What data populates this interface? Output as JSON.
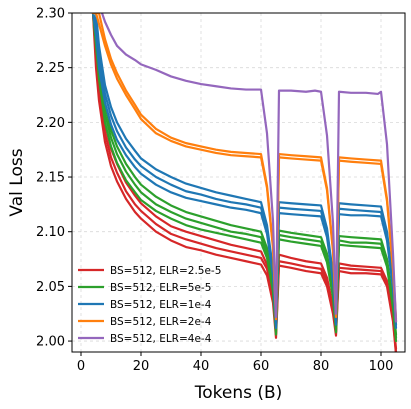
{
  "chart_data": {
    "type": "line",
    "xlabel": "Tokens (B)",
    "ylabel": "Val Loss",
    "xlim": [
      -3,
      108
    ],
    "ylim": [
      1.99,
      2.3
    ],
    "x_ticks": [
      0,
      20,
      40,
      60,
      80,
      100
    ],
    "y_ticks": [
      2.0,
      2.05,
      2.1,
      2.15,
      2.2,
      2.25,
      2.3
    ],
    "grid": true,
    "legend_position": "lower-left",
    "series": [
      {
        "name": "BS=512, ELR=2.5e-5",
        "color": "#d62728",
        "runs": [
          {
            "x": [
              4,
              5,
              6,
              8,
              10,
              12,
              15,
              18,
              20,
              25,
              30,
              35,
              40,
              45,
              50,
              55,
              60,
              62,
              64,
              65,
              66,
              70,
              75,
              80,
              82,
              84,
              85,
              86,
              90,
              95,
              100,
              102,
              104,
              105
            ],
            "y": [
              2.3,
              2.25,
              2.22,
              2.182,
              2.16,
              2.146,
              2.13,
              2.118,
              2.112,
              2.1,
              2.092,
              2.086,
              2.083,
              2.079,
              2.076,
              2.073,
              2.07,
              2.06,
              2.035,
              2.003,
              2.069,
              2.067,
              2.064,
              2.062,
              2.05,
              2.025,
              2.005,
              2.064,
              2.062,
              2.062,
              2.061,
              2.05,
              2.018,
              1.988
            ]
          },
          {
            "x": [
              4,
              5,
              6,
              8,
              10,
              12,
              15,
              18,
              20,
              25,
              30,
              35,
              40,
              45,
              50,
              55,
              60,
              62,
              64,
              65,
              66,
              70,
              75,
              80,
              82,
              84,
              85,
              86,
              90,
              95,
              100,
              102,
              104,
              105
            ],
            "y": [
              2.3,
              2.26,
              2.23,
              2.19,
              2.168,
              2.154,
              2.137,
              2.125,
              2.119,
              2.107,
              2.098,
              2.093,
              2.089,
              2.085,
              2.082,
              2.079,
              2.076,
              2.066,
              2.04,
              2.006,
              2.073,
              2.071,
              2.068,
              2.066,
              2.054,
              2.028,
              2.008,
              2.067,
              2.066,
              2.065,
              2.064,
              2.052,
              2.02,
              1.99
            ]
          },
          {
            "x": [
              4,
              5,
              6,
              8,
              10,
              12,
              15,
              18,
              20,
              25,
              30,
              35,
              40,
              45,
              50,
              55,
              60,
              62,
              64,
              65,
              66,
              70,
              75,
              80,
              82,
              84,
              85,
              86,
              90,
              95,
              100,
              102,
              104,
              105
            ],
            "y": [
              2.3,
              2.27,
              2.24,
              2.198,
              2.176,
              2.162,
              2.145,
              2.133,
              2.126,
              2.114,
              2.105,
              2.1,
              2.096,
              2.092,
              2.088,
              2.085,
              2.082,
              2.07,
              2.044,
              2.009,
              2.079,
              2.076,
              2.073,
              2.071,
              2.058,
              2.031,
              2.01,
              2.071,
              2.069,
              2.068,
              2.067,
              2.055,
              2.022,
              1.993
            ]
          }
        ]
      },
      {
        "name": "BS=512, ELR=5e-5",
        "color": "#2ca02c",
        "runs": [
          {
            "x": [
              4,
              5,
              6,
              8,
              10,
              12,
              15,
              18,
              20,
              25,
              30,
              35,
              40,
              45,
              50,
              55,
              60,
              62,
              64,
              65,
              66,
              70,
              75,
              80,
              82,
              84,
              85,
              86,
              90,
              95,
              100,
              102,
              104,
              105
            ],
            "y": [
              2.3,
              2.27,
              2.24,
              2.2,
              2.178,
              2.163,
              2.147,
              2.136,
              2.129,
              2.119,
              2.112,
              2.106,
              2.102,
              2.099,
              2.096,
              2.093,
              2.09,
              2.076,
              2.045,
              2.006,
              2.093,
              2.091,
              2.089,
              2.087,
              2.072,
              2.04,
              2.008,
              2.088,
              2.087,
              2.086,
              2.085,
              2.068,
              2.03,
              2.0
            ]
          },
          {
            "x": [
              4,
              5,
              6,
              8,
              10,
              12,
              15,
              18,
              20,
              25,
              30,
              35,
              40,
              45,
              50,
              55,
              60,
              62,
              64,
              65,
              66,
              70,
              75,
              80,
              82,
              84,
              85,
              86,
              90,
              95,
              100,
              102,
              104,
              105
            ],
            "y": [
              2.3,
              2.28,
              2.25,
              2.208,
              2.186,
              2.171,
              2.155,
              2.143,
              2.136,
              2.125,
              2.118,
              2.112,
              2.108,
              2.104,
              2.1,
              2.098,
              2.095,
              2.08,
              2.048,
              2.009,
              2.097,
              2.095,
              2.093,
              2.091,
              2.076,
              2.043,
              2.011,
              2.092,
              2.09,
              2.09,
              2.089,
              2.071,
              2.033,
              2.003
            ]
          },
          {
            "x": [
              4,
              5,
              6,
              8,
              10,
              12,
              15,
              18,
              20,
              25,
              30,
              35,
              40,
              45,
              50,
              55,
              60,
              62,
              64,
              65,
              66,
              70,
              75,
              80,
              82,
              84,
              85,
              86,
              90,
              95,
              100,
              102,
              104,
              105
            ],
            "y": [
              2.3,
              2.29,
              2.26,
              2.216,
              2.193,
              2.178,
              2.162,
              2.15,
              2.143,
              2.132,
              2.124,
              2.118,
              2.114,
              2.11,
              2.106,
              2.103,
              2.1,
              2.085,
              2.052,
              2.012,
              2.101,
              2.099,
              2.097,
              2.095,
              2.08,
              2.046,
              2.014,
              2.096,
              2.095,
              2.094,
              2.093,
              2.075,
              2.036,
              2.006
            ]
          }
        ]
      },
      {
        "name": "BS=512, ELR=1e-4",
        "color": "#1f77b4",
        "runs": [
          {
            "x": [
              4,
              5,
              6,
              8,
              10,
              12,
              15,
              18,
              20,
              25,
              30,
              35,
              40,
              45,
              50,
              55,
              60,
              62,
              64,
              65,
              66,
              70,
              75,
              80,
              82,
              84,
              85,
              86,
              90,
              95,
              100,
              102,
              104,
              105
            ],
            "y": [
              2.3,
              2.28,
              2.25,
              2.218,
              2.198,
              2.184,
              2.17,
              2.159,
              2.153,
              2.143,
              2.136,
              2.131,
              2.128,
              2.125,
              2.122,
              2.12,
              2.117,
              2.098,
              2.06,
              2.012,
              2.117,
              2.116,
              2.115,
              2.114,
              2.095,
              2.055,
              2.015,
              2.116,
              2.115,
              2.115,
              2.114,
              2.092,
              2.048,
              2.012
            ]
          },
          {
            "x": [
              4,
              5,
              6,
              8,
              10,
              12,
              15,
              18,
              20,
              25,
              30,
              35,
              40,
              45,
              50,
              55,
              60,
              62,
              64,
              65,
              66,
              70,
              75,
              80,
              82,
              84,
              85,
              86,
              90,
              95,
              100,
              102,
              104,
              105
            ],
            "y": [
              2.3,
              2.29,
              2.26,
              2.226,
              2.206,
              2.192,
              2.177,
              2.166,
              2.16,
              2.15,
              2.143,
              2.137,
              2.134,
              2.13,
              2.127,
              2.125,
              2.122,
              2.102,
              2.063,
              2.015,
              2.122,
              2.121,
              2.12,
              2.119,
              2.099,
              2.058,
              2.018,
              2.121,
              2.12,
              2.119,
              2.118,
              2.096,
              2.051,
              2.015
            ]
          },
          {
            "x": [
              4,
              5,
              6,
              8,
              10,
              12,
              15,
              18,
              20,
              25,
              30,
              35,
              40,
              45,
              50,
              55,
              60,
              62,
              64,
              65,
              66,
              70,
              75,
              80,
              82,
              84,
              85,
              86,
              90,
              95,
              100,
              102,
              104,
              105
            ],
            "y": [
              2.3,
              2.3,
              2.27,
              2.234,
              2.214,
              2.2,
              2.185,
              2.174,
              2.167,
              2.157,
              2.15,
              2.144,
              2.14,
              2.136,
              2.133,
              2.13,
              2.127,
              2.106,
              2.066,
              2.018,
              2.127,
              2.126,
              2.125,
              2.124,
              2.103,
              2.061,
              2.02,
              2.126,
              2.125,
              2.124,
              2.123,
              2.1,
              2.054,
              2.018
            ]
          }
        ]
      },
      {
        "name": "BS=512, ELR=2e-4",
        "color": "#ff7f0e",
        "runs": [
          {
            "x": [
              4,
              5,
              6,
              8,
              10,
              12,
              15,
              18,
              20,
              25,
              30,
              35,
              40,
              45,
              50,
              55,
              60,
              62,
              64,
              65,
              66,
              70,
              75,
              80,
              82,
              84,
              85,
              86,
              90,
              95,
              100,
              102,
              104,
              105
            ],
            "y": [
              2.3,
              2.3,
              2.29,
              2.27,
              2.253,
              2.24,
              2.225,
              2.212,
              2.203,
              2.19,
              2.183,
              2.178,
              2.175,
              2.172,
              2.17,
              2.169,
              2.168,
              2.14,
              2.085,
              2.02,
              2.168,
              2.167,
              2.166,
              2.165,
              2.138,
              2.082,
              2.022,
              2.165,
              2.164,
              2.163,
              2.162,
              2.128,
              2.065,
              2.018
            ]
          },
          {
            "x": [
              4,
              5,
              6,
              8,
              10,
              12,
              15,
              18,
              20,
              25,
              30,
              35,
              40,
              45,
              50,
              55,
              60,
              62,
              64,
              65,
              66,
              70,
              75,
              80,
              82,
              84,
              85,
              86,
              90,
              95,
              100,
              102,
              104,
              105
            ],
            "y": [
              2.3,
              2.3,
              2.3,
              2.276,
              2.258,
              2.245,
              2.229,
              2.216,
              2.207,
              2.194,
              2.186,
              2.181,
              2.178,
              2.175,
              2.173,
              2.172,
              2.171,
              2.142,
              2.087,
              2.022,
              2.171,
              2.17,
              2.169,
              2.168,
              2.14,
              2.084,
              2.024,
              2.168,
              2.167,
              2.166,
              2.165,
              2.13,
              2.067,
              2.02
            ]
          }
        ]
      },
      {
        "name": "BS=512, ELR=4e-4",
        "color": "#9467bd",
        "runs": [
          {
            "x": [
              7,
              8,
              10,
              12,
              15,
              18,
              20,
              25,
              30,
              35,
              40,
              45,
              50,
              55,
              57,
              60,
              62,
              64,
              65,
              66,
              70,
              75,
              78,
              80,
              82,
              84,
              85,
              86,
              90,
              95,
              99,
              100,
              102,
              104,
              105
            ],
            "y": [
              2.3,
              2.292,
              2.28,
              2.27,
              2.262,
              2.257,
              2.253,
              2.248,
              2.242,
              2.238,
              2.235,
              2.233,
              2.231,
              2.23,
              2.23,
              2.23,
              2.19,
              2.11,
              2.022,
              2.229,
              2.229,
              2.228,
              2.229,
              2.228,
              2.188,
              2.108,
              2.025,
              2.228,
              2.227,
              2.227,
              2.226,
              2.228,
              2.18,
              2.08,
              2.018
            ]
          }
        ]
      }
    ]
  }
}
